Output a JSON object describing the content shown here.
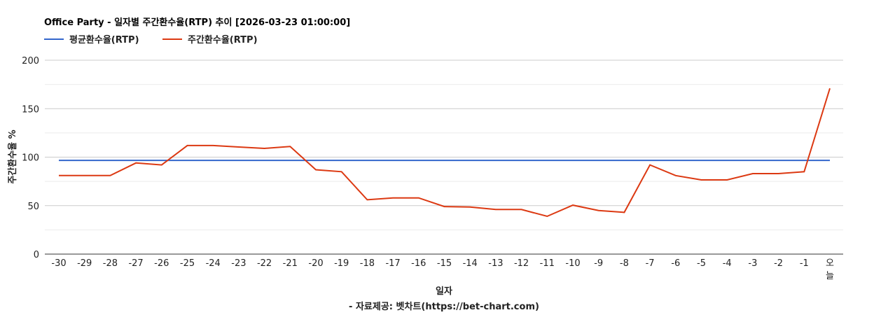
{
  "chart_data": {
    "type": "line",
    "title": "Office Party - 일자별 주간환수율(RTP) 추이 [2026-03-23 01:00:00]",
    "xlabel": "일자",
    "ylabel": "주간환수율 %",
    "footer": "- 자료제공: 벳차트(https://bet-chart.com)",
    "ylim": [
      0,
      200
    ],
    "yticks": [
      "0",
      "50",
      "100",
      "150",
      "200"
    ],
    "grid": true,
    "legend_position": "top-left",
    "categories": [
      "-30",
      "-29",
      "-28",
      "-27",
      "-26",
      "-25",
      "-24",
      "-23",
      "-22",
      "-21",
      "-20",
      "-19",
      "-18",
      "-17",
      "-16",
      "-15",
      "-14",
      "-13",
      "-12",
      "-11",
      "-10",
      "-9",
      "-8",
      "-7",
      "-6",
      "-5",
      "-4",
      "-3",
      "-2",
      "-1",
      "오늘"
    ],
    "series": [
      {
        "name": "평균환수율(RTP)",
        "color": "#3366cc",
        "values": [
          96.7,
          96.7,
          96.7,
          96.7,
          96.7,
          96.7,
          96.7,
          96.7,
          96.7,
          96.7,
          96.7,
          96.7,
          96.7,
          96.7,
          96.7,
          96.7,
          96.7,
          96.7,
          96.7,
          96.7,
          96.7,
          96.7,
          96.7,
          96.7,
          96.7,
          96.7,
          96.7,
          96.7,
          96.7,
          96.7,
          96.7
        ]
      },
      {
        "name": "주간환수율(RTP)",
        "color": "#dc3912",
        "values": [
          81,
          81,
          81,
          94,
          92,
          112,
          112,
          110.5,
          109,
          111,
          87,
          85,
          56,
          58,
          58,
          49,
          48.5,
          46,
          46,
          39,
          50.5,
          45,
          43,
          92,
          81,
          76.5,
          76.5,
          83,
          83,
          85,
          171
        ]
      }
    ]
  }
}
